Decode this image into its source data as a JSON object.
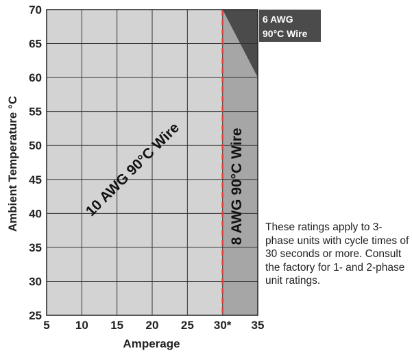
{
  "chart_data": {
    "type": "area",
    "xlabel": "Amperage",
    "ylabel": "Ambient Temperature °C",
    "xlim": [
      5,
      35
    ],
    "ylim": [
      25,
      70
    ],
    "grid": true,
    "x_ticks": [
      5,
      10,
      15,
      20,
      25,
      30,
      35
    ],
    "x_tick_labels": [
      "5",
      "10",
      "15",
      "20",
      "25",
      "30*",
      "35"
    ],
    "y_ticks": [
      25,
      30,
      35,
      40,
      45,
      50,
      55,
      60,
      65,
      70
    ],
    "y_tick_labels": [
      "25",
      "30",
      "35",
      "40",
      "45",
      "50",
      "55",
      "60",
      "65",
      "70"
    ],
    "threshold_line": {
      "x": 30,
      "style": "dashed",
      "color": "#e0403a"
    },
    "regions": [
      {
        "name": "10 AWG 90°C Wire",
        "color": "#d3d3d3",
        "polygon": [
          [
            5,
            25
          ],
          [
            30,
            25
          ],
          [
            30,
            70
          ],
          [
            5,
            70
          ]
        ]
      },
      {
        "name": "8 AWG 90°C Wire",
        "color": "#a6a6a6",
        "polygon": [
          [
            30,
            25
          ],
          [
            35,
            25
          ],
          [
            35,
            60
          ],
          [
            30,
            70
          ]
        ]
      },
      {
        "name": "6 AWG 90°C Wire",
        "color": "#4b4b4b",
        "polygon": [
          [
            30,
            70
          ],
          [
            35,
            70
          ],
          [
            35,
            60
          ]
        ]
      }
    ],
    "labels": {
      "region_10": "10 AWG 90°C Wire",
      "region_8": "8 AWG 90°C Wire",
      "region_6_line1": "6 AWG",
      "region_6_line2": "90°C Wire"
    },
    "note": "These ratings apply to 3-phase units with cycle times of 30 seconds or more. Consult the factory for 1- and 2-phase unit ratings."
  }
}
